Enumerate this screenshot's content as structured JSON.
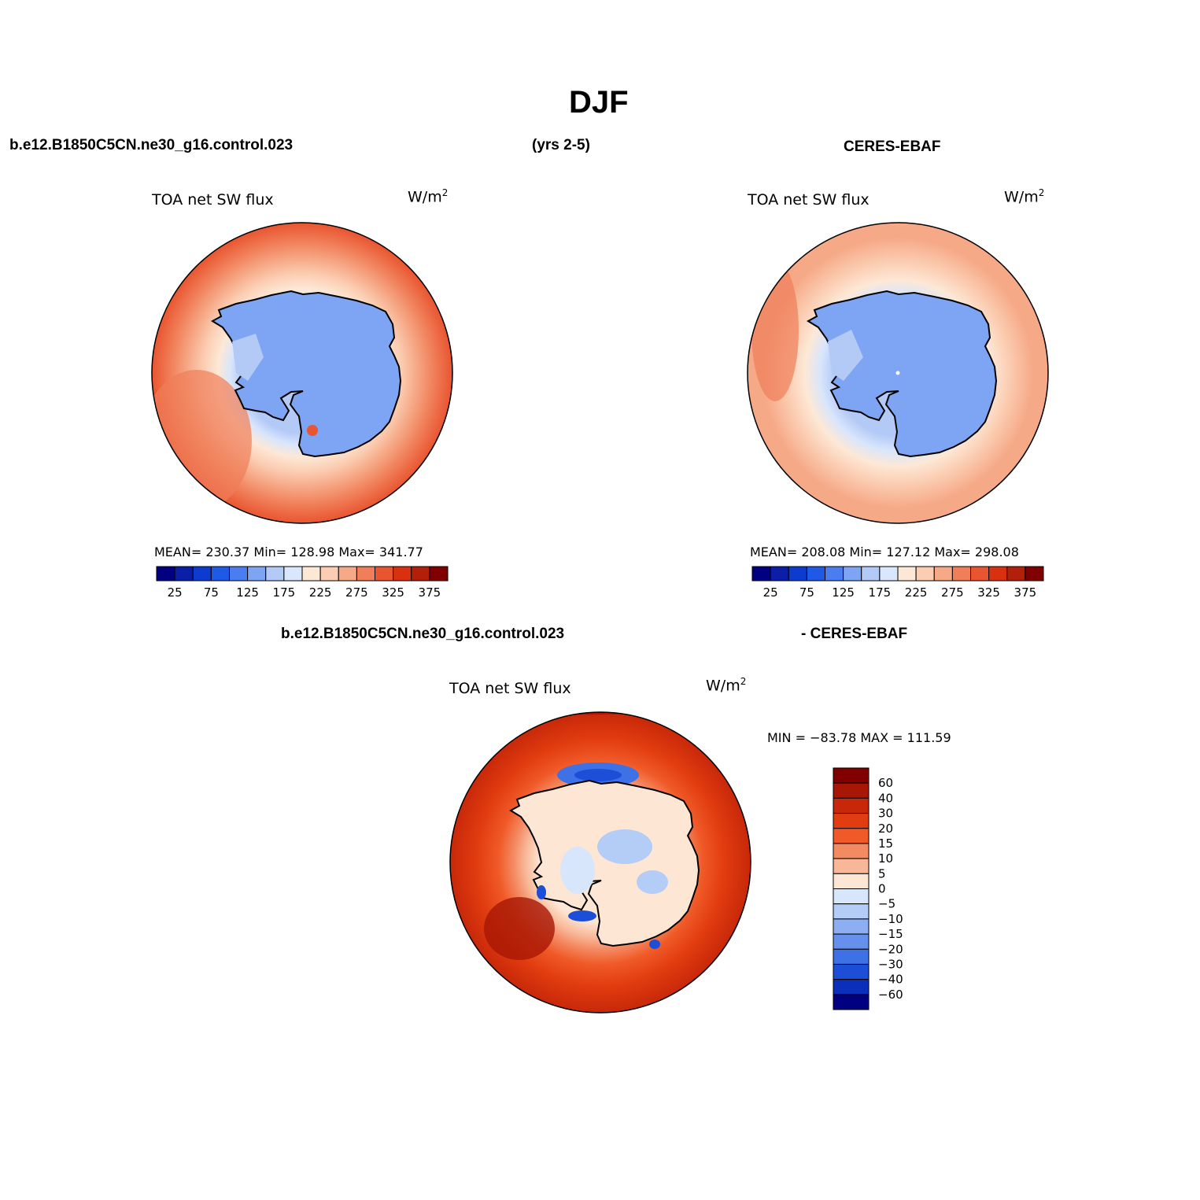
{
  "title": "DJF",
  "header": {
    "case_name": "b.e12.B1850C5CN.ne30_g16.control.023",
    "years": "(yrs 2-5)",
    "obs_name": "CERES-EBAF",
    "diff_case": "b.e12.B1850C5CN.ne30_g16.control.023",
    "diff_obs": "- CERES-EBAF"
  },
  "panels": [
    {
      "variable": "TOA net SW flux",
      "units": "W/m",
      "units_sup": "2",
      "stats": "MEAN= 230.37   Min= 128.98   Max= 341.77"
    },
    {
      "variable": "TOA net SW flux",
      "units": "W/m",
      "units_sup": "2",
      "stats": "MEAN= 208.08   Min= 127.12   Max= 298.08"
    },
    {
      "variable": "TOA net SW flux",
      "units": "W/m",
      "units_sup": "2",
      "stats": "MIN = −83.78 MAX = 111.59"
    }
  ],
  "colorbar_main": {
    "colors": [
      "#000080",
      "#0a1ea8",
      "#0c3bd0",
      "#1f5ae6",
      "#4a7ef0",
      "#7ea4f4",
      "#b3c9f6",
      "#d9e6fb",
      "#fde8d6",
      "#fbcdb2",
      "#f6a987",
      "#f07e58",
      "#e85530",
      "#d9310f",
      "#b2200a",
      "#800000"
    ],
    "labels": [
      "25",
      "75",
      "125",
      "175",
      "225",
      "275",
      "325",
      "375"
    ]
  },
  "colorbar_diff": {
    "colors": [
      "#800000",
      "#a81605",
      "#c8280a",
      "#e23d10",
      "#f05a28",
      "#f48a62",
      "#f8b898",
      "#fde6d4",
      "#d8e6fb",
      "#b4cdf7",
      "#8eaef2",
      "#6690ec",
      "#3e70e6",
      "#1d4ed8",
      "#0b2fba",
      "#000080"
    ],
    "labels": [
      "60",
      "40",
      "30",
      "20",
      "15",
      "10",
      "5",
      "0",
      "−5",
      "−10",
      "−15",
      "−20",
      "−30",
      "−40",
      "−60"
    ]
  }
}
